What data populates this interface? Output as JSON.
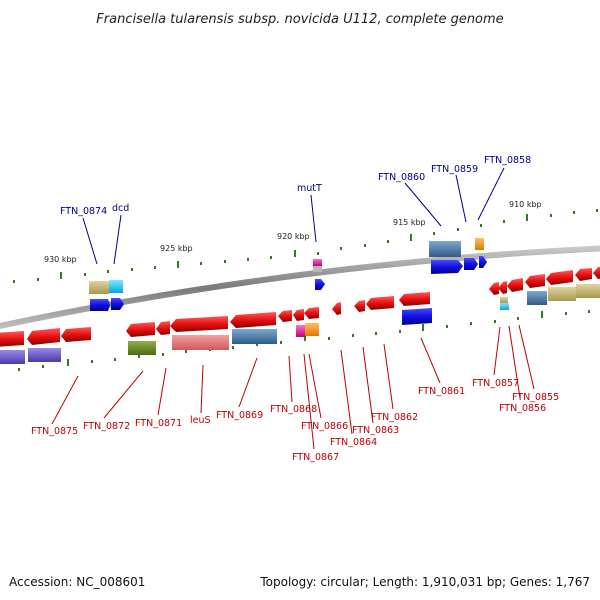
{
  "title": "Francisella tularensis subsp. novicida U112, complete genome",
  "footer": {
    "accession": "Accession: NC_008601",
    "summary": "Topology: circular; Length: 1,910,031 bp; Genes: 1,767"
  },
  "ruler": [
    "930 kbp",
    "925 kbp",
    "920 kbp",
    "915 kbp",
    "910 kbp"
  ],
  "colors": {
    "backbone": "#8c8c8c",
    "forward_gene": "#1010e0",
    "reverse_gene": "#e81010",
    "tick": "#2e7d1e",
    "label_forward": "#00008b",
    "label_reverse": "#c00000"
  },
  "forward_labels": [
    "FTN_0874",
    "dcd",
    "mutT",
    "FTN_0860",
    "FTN_0859",
    "FTN_0858"
  ],
  "reverse_labels": [
    "FTN_0875",
    "FTN_0872",
    "FTN_0871",
    "leuS",
    "FTN_0869",
    "FTN_0868",
    "FTN_0867",
    "FTN_0866",
    "FTN_0864",
    "FTN_0863",
    "FTN_0862",
    "FTN_0861",
    "FTN_0857",
    "FTN_0856",
    "FTN_0855"
  ]
}
